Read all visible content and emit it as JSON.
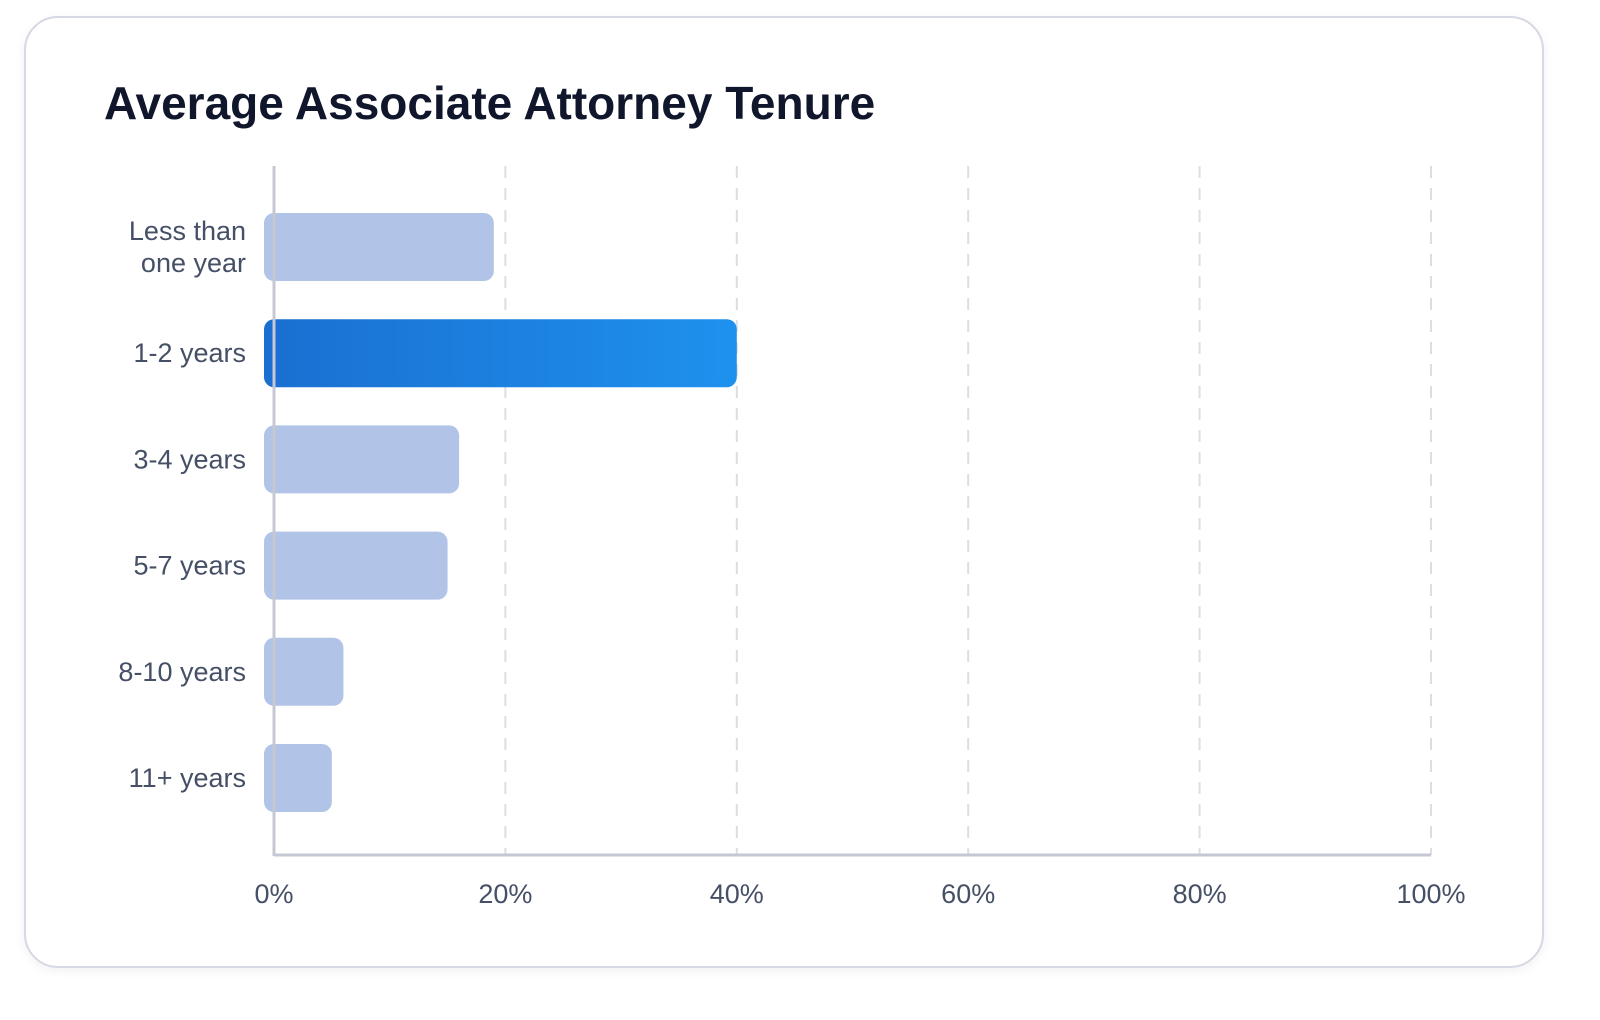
{
  "chart_data": {
    "type": "bar",
    "orientation": "horizontal",
    "title": "Average Associate Attorney Tenure",
    "xlabel": "",
    "ylabel": "",
    "categories": [
      [
        "Less than",
        "one year"
      ],
      [
        "1-2 years"
      ],
      [
        "3-4 years"
      ],
      [
        "5-7 years"
      ],
      [
        "8-10 years"
      ],
      [
        "11+ years"
      ]
    ],
    "values": [
      19,
      40,
      16,
      15,
      6,
      5
    ],
    "highlight_index": 1,
    "xlim": [
      0,
      100
    ],
    "x_ticks": [
      0,
      20,
      40,
      60,
      80,
      100
    ],
    "x_tick_labels": [
      "0%",
      "20%",
      "40%",
      "60%",
      "80%",
      "100%"
    ],
    "grid": "vertical dashed",
    "legend": "none",
    "colors": {
      "bar": "#b1c4e8",
      "highlight_start": "#1a6fd1",
      "highlight_end": "#1e91ee",
      "grid": "#dcdee5",
      "axis": "#c5c8d2"
    }
  }
}
